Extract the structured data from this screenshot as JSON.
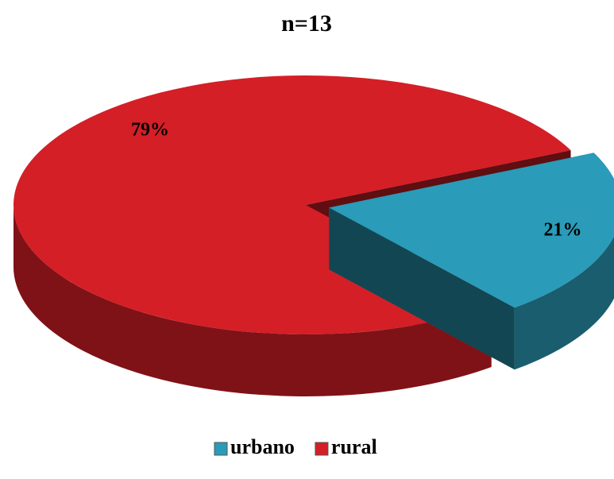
{
  "chart_data": {
    "type": "pie",
    "title": "n=13",
    "categories": [
      "urbano",
      "rural"
    ],
    "values": [
      21,
      79
    ],
    "value_labels": [
      "21%",
      "79%"
    ],
    "colors": [
      "#2a9bb8",
      "#d41f27"
    ],
    "legend": "bottom"
  }
}
